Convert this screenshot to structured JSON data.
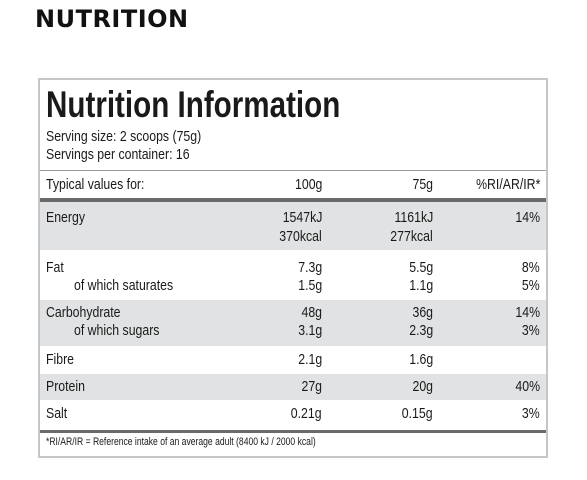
{
  "heading": "NUTRITION",
  "panel": {
    "title": "Nutrition Information",
    "serving_size": "Serving size: 2 scoops (75g)",
    "servings_per_container": "Servings per container: 16"
  },
  "table": {
    "headers": [
      "Typical values for:",
      "100g",
      "75g",
      "%RI/AR/IR*"
    ],
    "rows": [
      {
        "name": "Energy",
        "per100": "1547kJ",
        "per75": "1161kJ",
        "ri": "14%",
        "name2": "",
        "per100_2": "370kcal",
        "per75_2": "277kcal",
        "ri_2": ""
      },
      {
        "name": "Fat",
        "per100": "7.3g",
        "per75": "5.5g",
        "ri": "8%",
        "name2": "of which saturates",
        "per100_2": "1.5g",
        "per75_2": "1.1g",
        "ri_2": "5%"
      },
      {
        "name": "Carbohydrate",
        "per100": "48g",
        "per75": "36g",
        "ri": "14%",
        "name2": "of which sugars",
        "per100_2": "3.1g",
        "per75_2": "2.3g",
        "ri_2": "3%"
      },
      {
        "name": "Fibre",
        "per100": "2.1g",
        "per75": "1.6g",
        "ri": ""
      },
      {
        "name": "Protein",
        "per100": "27g",
        "per75": "20g",
        "ri": "40%"
      },
      {
        "name": "Salt",
        "per100": "0.21g",
        "per75": "0.15g",
        "ri": "3%"
      }
    ]
  },
  "footnote": "*RI/AR/IR = Reference intake of an average adult (8400 kJ / 2000 kcal)",
  "colors": {
    "text": "#1a1a1a",
    "shade": "#e1e2e3",
    "border": "#c4c6c8",
    "rule": "#6a6a6a"
  }
}
